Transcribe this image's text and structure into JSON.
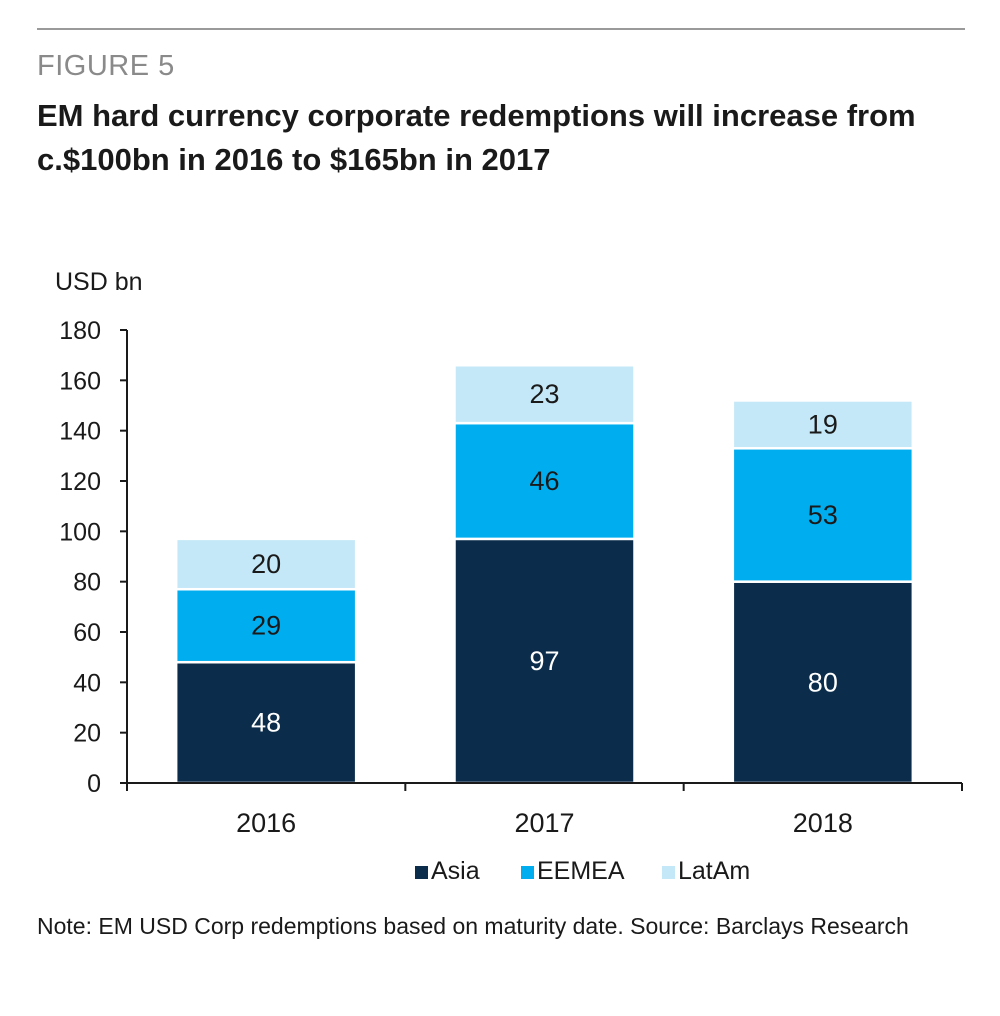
{
  "figure_label": "FIGURE 5",
  "note": "Note: EM USD Corp redemptions based on maturity date. Source: Barclays Research",
  "colors": {
    "Asia": "#0b2d4b",
    "EEMEA": "#00aeef",
    "LatAm": "#c5e8f8",
    "axis": "#1a1a1a",
    "rule": "#9a9a9a"
  },
  "chart_data": {
    "type": "bar",
    "stacked": true,
    "title": "EM hard currency corporate redemptions will increase from c.$100bn in 2016 to $165bn in 2017",
    "xlabel": "",
    "ylabel": "USD bn",
    "categories": [
      "2016",
      "2017",
      "2018"
    ],
    "series": [
      {
        "name": "Asia",
        "values": [
          48,
          97,
          80
        ]
      },
      {
        "name": "EEMEA",
        "values": [
          29,
          46,
          53
        ]
      },
      {
        "name": "LatAm",
        "values": [
          20,
          23,
          19
        ]
      }
    ],
    "ylim": [
      0,
      180
    ],
    "yticks": [
      "0",
      "20",
      "40",
      "60",
      "80",
      "100",
      "120",
      "140",
      "160",
      "180"
    ],
    "grid": false,
    "legend_position": "bottom",
    "data_labels": true
  }
}
